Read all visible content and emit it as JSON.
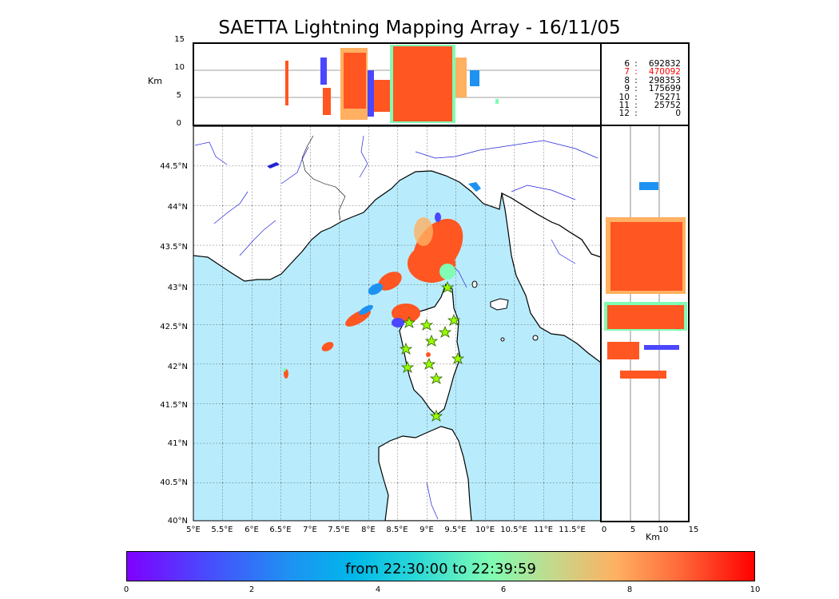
{
  "title": "SAETTA Lightning Mapping Array - 16/11/05",
  "top_panel": {
    "ylabel": "Km",
    "yticks": [
      "0",
      "5",
      "10",
      "15"
    ]
  },
  "map": {
    "lat_ticks": [
      "40°N",
      "40.5°N",
      "41°N",
      "41.5°N",
      "42°N",
      "42.5°N",
      "43°N",
      "43.5°N",
      "44°N",
      "44.5°N"
    ],
    "lon_ticks": [
      "5°E",
      "5.5°E",
      "6°E",
      "6.5°E",
      "7°E",
      "7.5°E",
      "8°E",
      "8.5°E",
      "9°E",
      "9.5°E",
      "10°E",
      "10.5°E",
      "11°E",
      "11.5°E"
    ]
  },
  "side_panel": {
    "xlabel": "Km",
    "xticks": [
      "0",
      "5",
      "10",
      "15"
    ]
  },
  "station_counts": [
    {
      "stations": "6",
      "count": "692832",
      "highlight": false
    },
    {
      "stations": "7",
      "count": "470092",
      "highlight": true
    },
    {
      "stations": "8",
      "count": "298353",
      "highlight": false
    },
    {
      "stations": "9",
      "count": "175699",
      "highlight": false
    },
    {
      "stations": "10",
      "count": "75271",
      "highlight": false
    },
    {
      "stations": "11",
      "count": "25752",
      "highlight": false
    },
    {
      "stations": "12",
      "count": "0",
      "highlight": false
    }
  ],
  "colorbar": {
    "label": "from 22:30:00 to 22:39:59",
    "ticks": [
      "0",
      "2",
      "4",
      "6",
      "8",
      "10"
    ],
    "colors": [
      "#7f00ff",
      "#1e92f2",
      "#2ad8d8",
      "#80fcb3",
      "#ffb061",
      "#ff0000"
    ]
  },
  "colors": {
    "sea": "#b8ecfc",
    "land": "#ffffff",
    "rivers": "#2222dd",
    "stations": "#99ff00",
    "highlight": "#ff0000"
  }
}
